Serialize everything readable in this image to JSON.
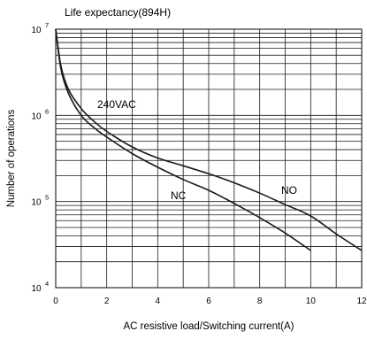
{
  "chart_data": {
    "type": "line",
    "title": "Life expectancy(894H)",
    "xlabel": "AC resistive load/Switching current(A)",
    "ylabel": "Number of operations",
    "xlim": [
      0,
      12
    ],
    "ylim": [
      10000,
      10000000
    ],
    "yscale": "log",
    "grid": true,
    "x_ticks": [
      "0",
      "2",
      "4",
      "6",
      "8",
      "10",
      "12"
    ],
    "y_ticks": [
      {
        "base": "10",
        "exp": "4",
        "value": 10000
      },
      {
        "base": "10",
        "exp": "5",
        "value": 100000
      },
      {
        "base": "10",
        "exp": "6",
        "value": 1000000
      },
      {
        "base": "10",
        "exp": "7",
        "value": 10000000
      }
    ],
    "annotations": [
      "240VAC"
    ],
    "series": [
      {
        "name": "NO",
        "x": [
          0,
          0.2,
          0.5,
          1,
          1.5,
          2,
          3,
          4,
          5,
          6,
          7,
          8,
          9,
          10,
          11,
          12
        ],
        "y": [
          10000000,
          3800000,
          2000000,
          1200000,
          850000,
          650000,
          430000,
          320000,
          260000,
          210000,
          165000,
          125000,
          92000,
          68000,
          42000,
          27000
        ]
      },
      {
        "name": "NC",
        "x": [
          0,
          0.2,
          0.5,
          1,
          1.5,
          2,
          3,
          4,
          5,
          6,
          7,
          8,
          9,
          10
        ],
        "y": [
          10000000,
          3500000,
          1800000,
          1000000,
          720000,
          560000,
          360000,
          250000,
          180000,
          135000,
          95000,
          65000,
          43000,
          27000
        ]
      }
    ]
  }
}
